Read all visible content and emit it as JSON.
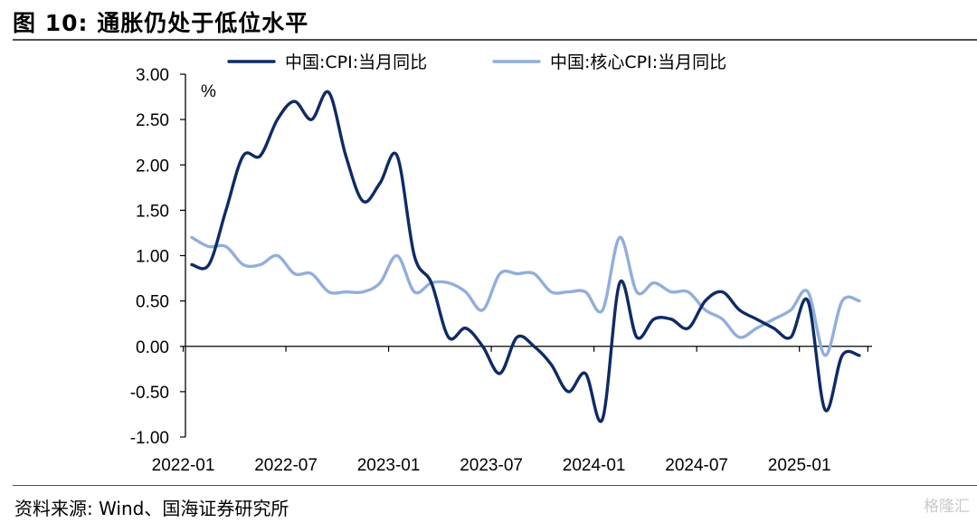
{
  "header": {
    "title": "图 10:  通胀仍处于低位水平"
  },
  "footer": {
    "source": "资料来源:  Wind、国海证券研究所",
    "watermark": "格隆汇"
  },
  "colors": {
    "series_cpi": "#0f2a66",
    "series_core": "#91aedc",
    "axis": "#000000",
    "rule": "#4d4d4d"
  },
  "chart_data": {
    "type": "line",
    "title": "通胀仍处于低位水平",
    "ylabel": "%",
    "xlabel": "",
    "ylim": [
      -1.0,
      3.0
    ],
    "yticks": [
      -1.0,
      -0.5,
      0.0,
      0.5,
      1.0,
      1.5,
      2.0,
      2.5,
      3.0
    ],
    "ytick_labels": [
      "-1.00",
      "-0.50",
      "0.00",
      "0.50",
      "1.00",
      "1.50",
      "2.00",
      "2.50",
      "3.00"
    ],
    "xtick_labels": [
      "2022-01",
      "2022-07",
      "2023-01",
      "2023-07",
      "2024-01",
      "2024-07",
      "2025-01"
    ],
    "xtick_index": [
      0,
      6,
      12,
      18,
      24,
      30,
      36
    ],
    "grid": false,
    "legend_position": "top",
    "categories": [
      "2022-01",
      "2022-02",
      "2022-03",
      "2022-04",
      "2022-05",
      "2022-06",
      "2022-07",
      "2022-08",
      "2022-09",
      "2022-10",
      "2022-11",
      "2022-12",
      "2023-01",
      "2023-02",
      "2023-03",
      "2023-04",
      "2023-05",
      "2023-06",
      "2023-07",
      "2023-08",
      "2023-09",
      "2023-10",
      "2023-11",
      "2023-12",
      "2024-01",
      "2024-02",
      "2024-03",
      "2024-04",
      "2024-05",
      "2024-06",
      "2024-07",
      "2024-08",
      "2024-09",
      "2024-10",
      "2024-11",
      "2024-12",
      "2025-01",
      "2025-02",
      "2025-03",
      "2025-04"
    ],
    "series": [
      {
        "name": "中国:CPI:当月同比",
        "key": "cpi",
        "values": [
          0.9,
          0.9,
          1.5,
          2.1,
          2.1,
          2.5,
          2.7,
          2.5,
          2.8,
          2.1,
          1.6,
          1.8,
          2.1,
          1.0,
          0.7,
          0.1,
          0.2,
          0.0,
          -0.3,
          0.1,
          0.0,
          -0.2,
          -0.5,
          -0.3,
          -0.8,
          0.7,
          0.1,
          0.3,
          0.3,
          0.2,
          0.5,
          0.6,
          0.4,
          0.3,
          0.2,
          0.1,
          0.5,
          -0.7,
          -0.1,
          -0.1
        ]
      },
      {
        "name": "中国:核心CPI:当月同比",
        "key": "core",
        "values": [
          1.2,
          1.1,
          1.1,
          0.9,
          0.9,
          1.0,
          0.8,
          0.8,
          0.6,
          0.6,
          0.6,
          0.7,
          1.0,
          0.6,
          0.7,
          0.7,
          0.6,
          0.4,
          0.8,
          0.8,
          0.8,
          0.6,
          0.6,
          0.6,
          0.4,
          1.2,
          0.6,
          0.7,
          0.6,
          0.6,
          0.4,
          0.3,
          0.1,
          0.2,
          0.3,
          0.4,
          0.6,
          -0.1,
          0.5,
          0.5
        ]
      }
    ]
  }
}
